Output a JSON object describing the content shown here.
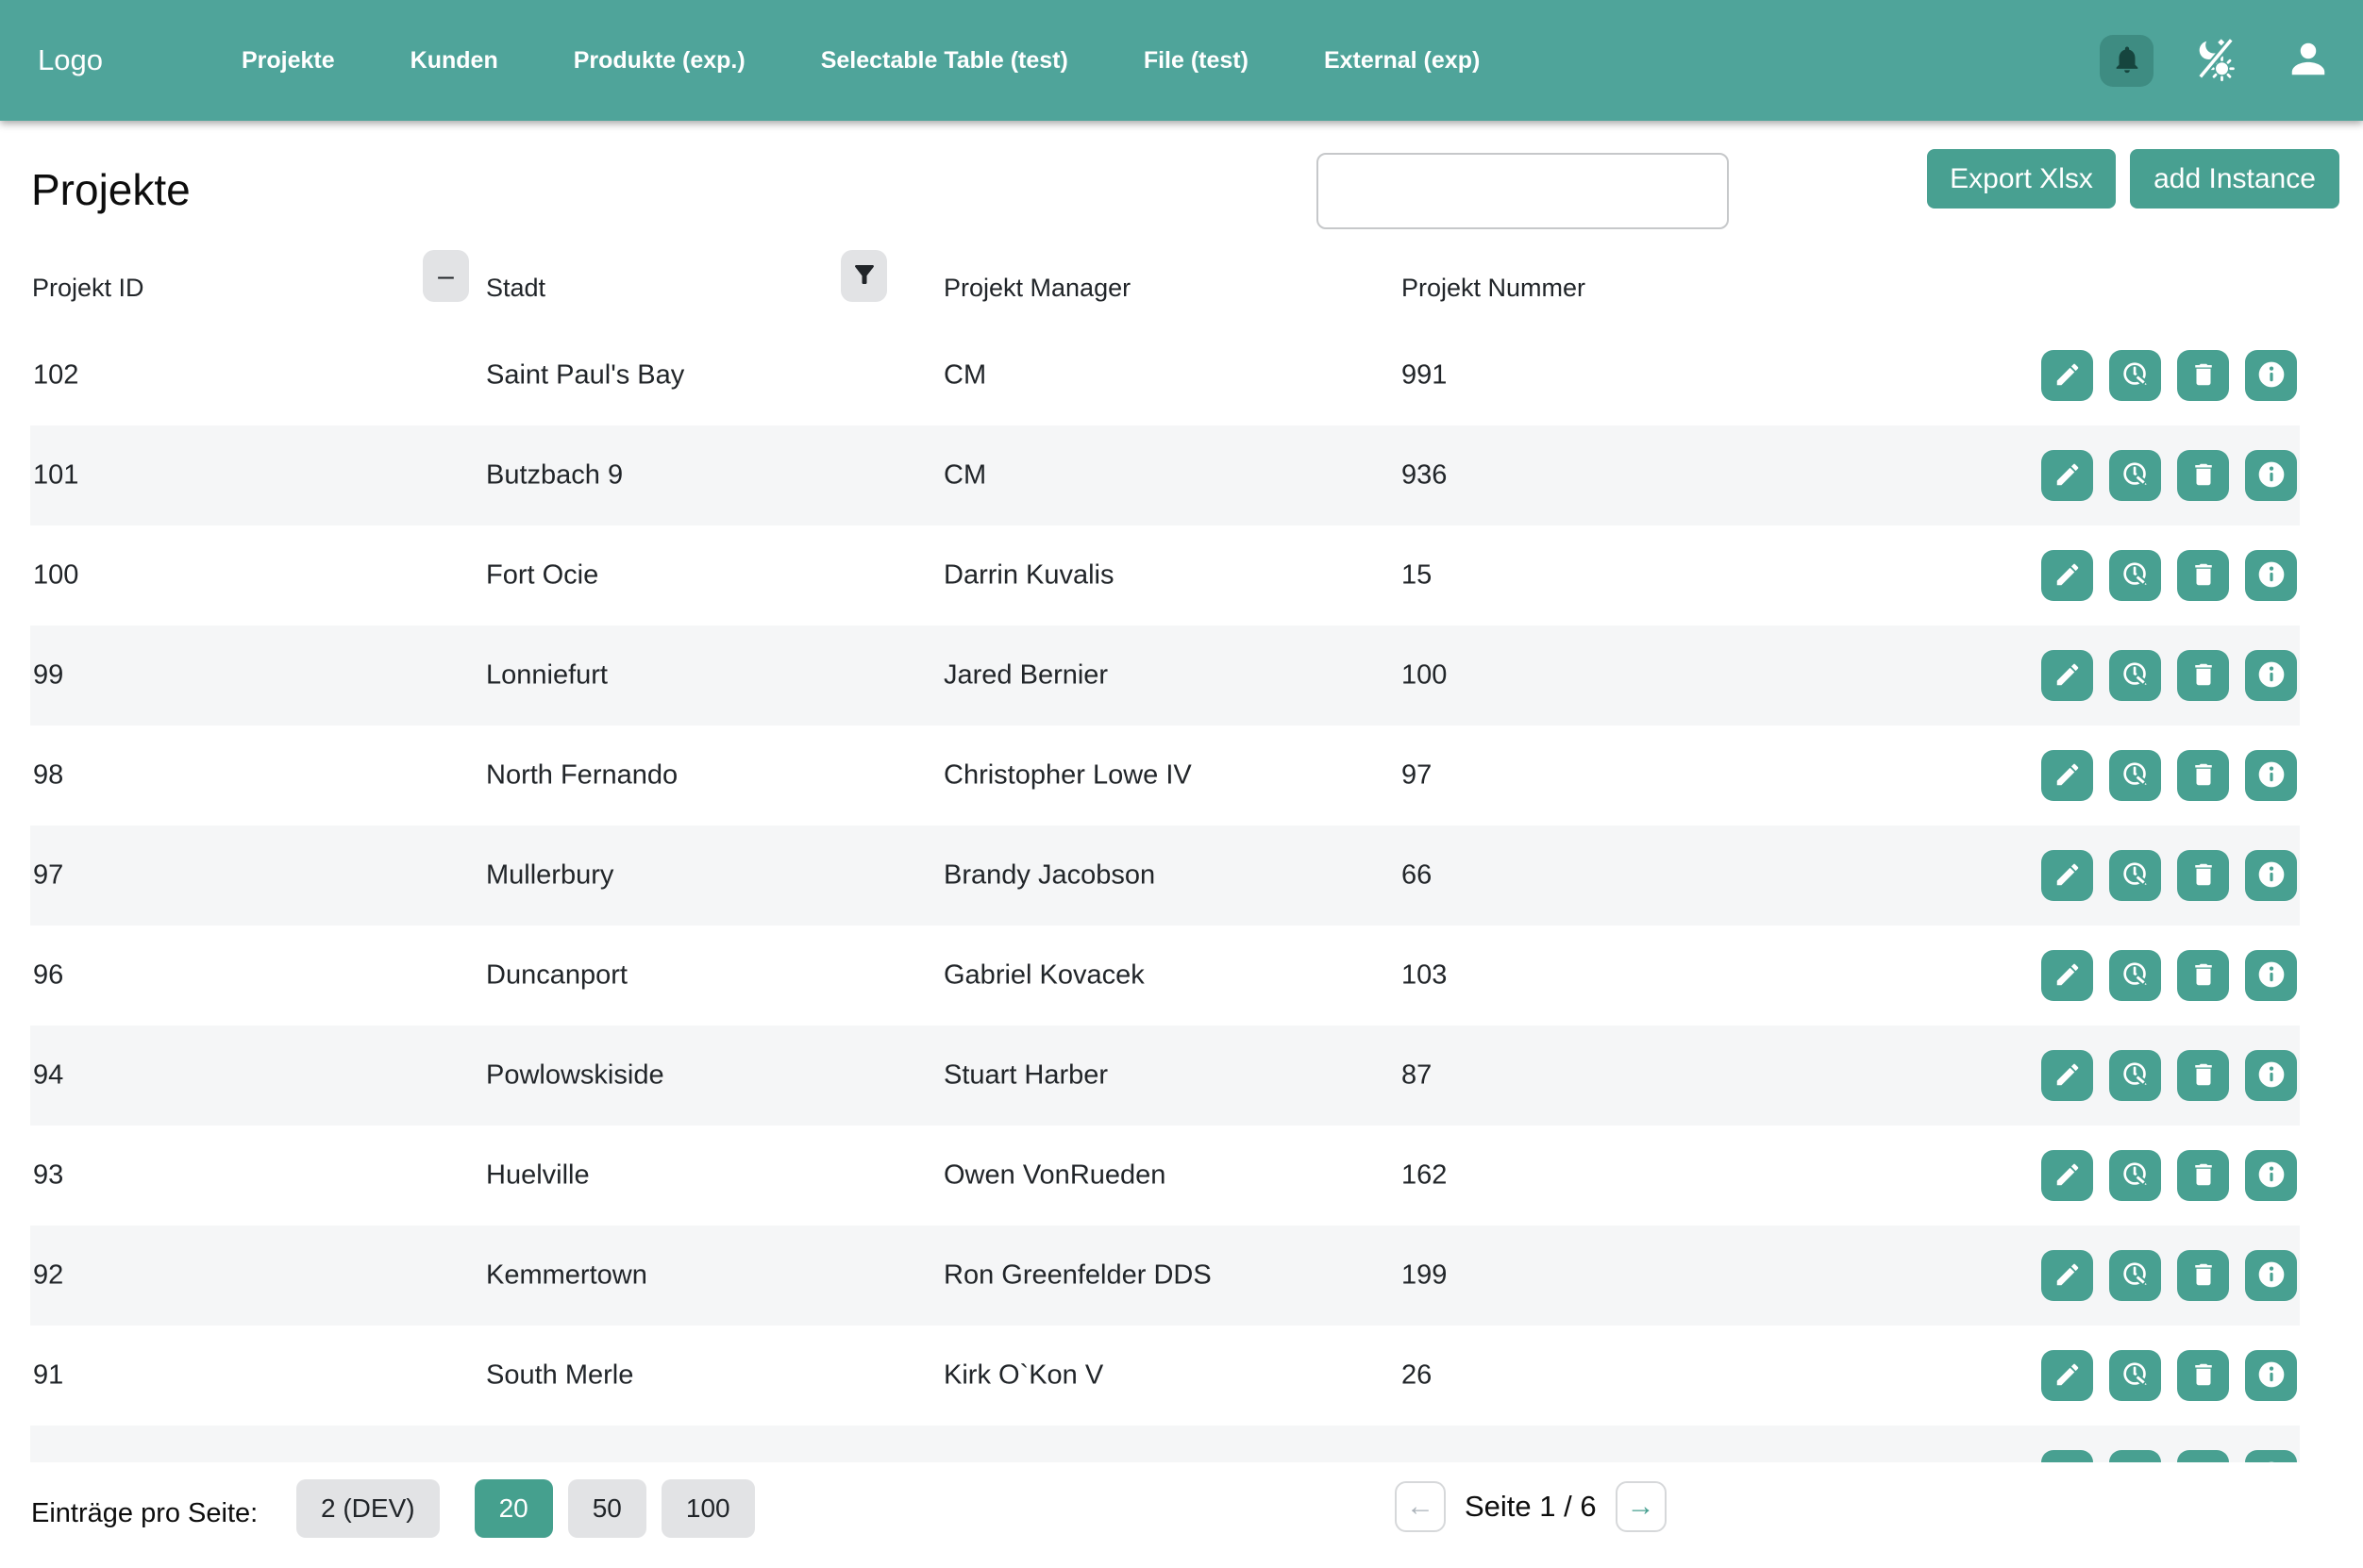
{
  "theme": {
    "header_bg": "#4FA49A",
    "accent": "#48A091",
    "bell_chip_bg": "#3E8C82",
    "row_alt_bg": "#F5F6F7",
    "chip_bg": "#E2E3E5",
    "text": "#212529"
  },
  "header": {
    "logo": "Logo",
    "nav": [
      {
        "label": "Projekte"
      },
      {
        "label": "Kunden"
      },
      {
        "label": "Produkte (exp.)"
      },
      {
        "label": "Selectable Table (test)"
      },
      {
        "label": "File (test)"
      },
      {
        "label": "External (exp)"
      }
    ],
    "icons": [
      "bell-icon",
      "theme-toggle-icon",
      "user-icon"
    ]
  },
  "page": {
    "title": "Projekte",
    "search_value": "",
    "export_button": "Export Xlsx",
    "add_button": "add Instance"
  },
  "table": {
    "columns": [
      "Projekt ID",
      "Stadt",
      "Projekt Manager",
      "Projekt Nummer"
    ],
    "header_icons": [
      "minus-icon",
      "filter-icon"
    ],
    "row_action_icons": [
      "pencil-icon",
      "clock-edit-icon",
      "trash-icon",
      "info-icon"
    ],
    "rows": [
      {
        "id": "102",
        "stadt": "Saint Paul's Bay",
        "manager": "CM",
        "nummer": "991"
      },
      {
        "id": "101",
        "stadt": "Butzbach 9",
        "manager": "CM",
        "nummer": "936"
      },
      {
        "id": "100",
        "stadt": "Fort Ocie",
        "manager": "Darrin Kuvalis",
        "nummer": "15"
      },
      {
        "id": "99",
        "stadt": "Lonniefurt",
        "manager": "Jared Bernier",
        "nummer": "100"
      },
      {
        "id": "98",
        "stadt": "North Fernando",
        "manager": "Christopher Lowe IV",
        "nummer": "97"
      },
      {
        "id": "97",
        "stadt": "Mullerbury",
        "manager": "Brandy Jacobson",
        "nummer": "66"
      },
      {
        "id": "96",
        "stadt": "Duncanport",
        "manager": "Gabriel Kovacek",
        "nummer": "103"
      },
      {
        "id": "94",
        "stadt": "Powlowskiside",
        "manager": "Stuart Harber",
        "nummer": "87"
      },
      {
        "id": "93",
        "stadt": "Huelville",
        "manager": "Owen VonRueden",
        "nummer": "162"
      },
      {
        "id": "92",
        "stadt": "Kemmertown",
        "manager": "Ron Greenfelder DDS",
        "nummer": "199"
      },
      {
        "id": "91",
        "stadt": "South Merle",
        "manager": "Kirk O`Kon V",
        "nummer": "26"
      }
    ],
    "partial_row_visible": true
  },
  "footer": {
    "page_size_label": "Einträge pro Seite:",
    "page_sizes": [
      {
        "label": "2 (DEV)",
        "active": false
      },
      {
        "label": "20",
        "active": true
      },
      {
        "label": "50",
        "active": false
      },
      {
        "label": "100",
        "active": false
      }
    ],
    "page_indicator": "Seite 1 / 6",
    "pager_icons": [
      "arrow-left-icon",
      "arrow-right-icon"
    ]
  }
}
